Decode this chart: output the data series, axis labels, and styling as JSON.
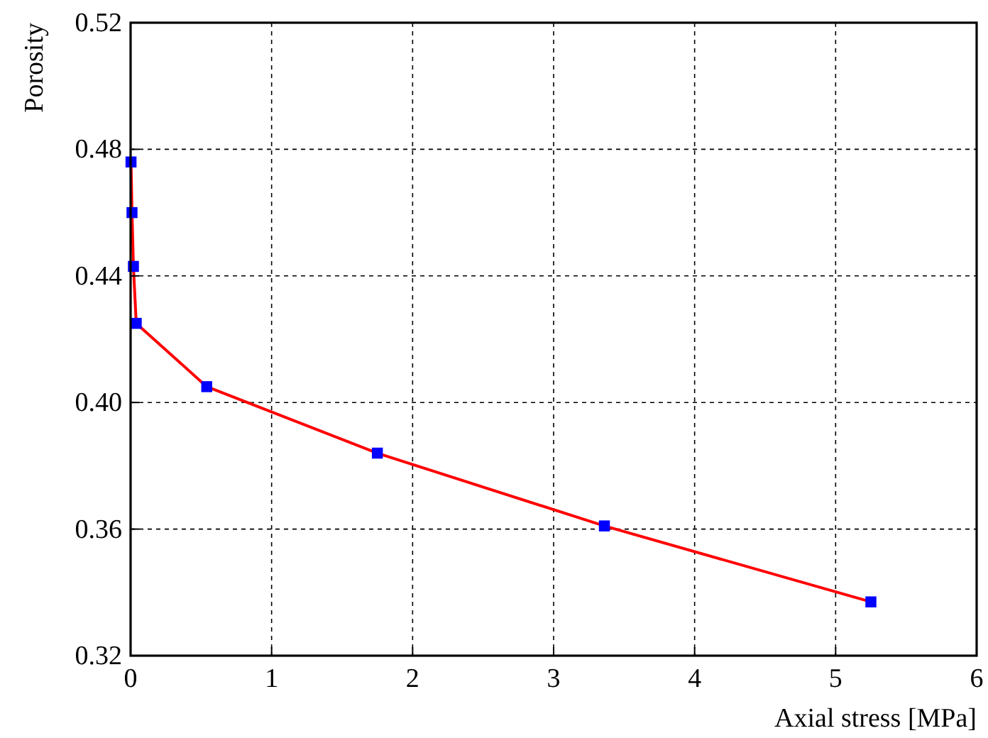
{
  "chart_data": {
    "type": "line",
    "xlabel": "Axial stress [MPa]",
    "ylabel": "Porosity",
    "x": [
      0.003,
      0.01,
      0.02,
      0.04,
      0.54,
      1.75,
      3.36,
      5.25
    ],
    "series": [
      {
        "color": "#ff0000",
        "marker": "none",
        "values": [
          0.476,
          0.46,
          0.443,
          0.425,
          0.405,
          0.384,
          0.361,
          0.337
        ]
      },
      {
        "type": "scatter",
        "color": "#0000ff",
        "marker": "square",
        "values": [
          0.476,
          0.46,
          0.443,
          0.425,
          0.405,
          0.384,
          0.361,
          0.337
        ]
      }
    ],
    "xlim": [
      0,
      6
    ],
    "xticks": [
      0,
      1,
      2,
      3,
      4,
      5,
      6
    ],
    "ylim": [
      0.32,
      0.52
    ],
    "yticks": [
      {
        "value": 0.32,
        "label": "0.32"
      },
      {
        "value": 0.36,
        "label": "0.36"
      },
      {
        "value": 0.4,
        "label": "0.40"
      },
      {
        "value": 0.44,
        "label": "0.44"
      },
      {
        "value": 0.48,
        "label": "0.48"
      },
      {
        "value": 0.52,
        "label": "0.52"
      }
    ],
    "grid": true,
    "line_style": "solid"
  }
}
